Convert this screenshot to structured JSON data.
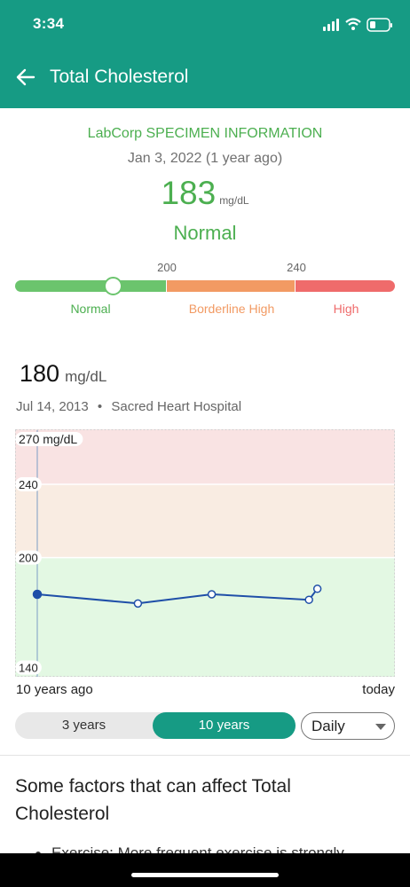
{
  "status_bar": {
    "time": "3:34"
  },
  "header": {
    "title": "Total Cholesterol"
  },
  "latest": {
    "source": "LabCorp SPECIMEN INFORMATION",
    "date": "Jan 3, 2022 (1 year ago)",
    "value": "183",
    "unit": "mg/dL",
    "status": "Normal"
  },
  "range_bar": {
    "ticks": [
      "200",
      "240"
    ],
    "labels": {
      "normal": "Normal",
      "borderline": "Borderline High",
      "high": "High"
    },
    "colors": {
      "normal": "#6bc46d",
      "borderline": "#f29a63",
      "high": "#ef6b6b"
    }
  },
  "selected": {
    "value": "180",
    "unit": "mg/dL",
    "date": "Jul 14, 2013",
    "separator": "•",
    "location": "Sacred Heart Hospital"
  },
  "chart_data": {
    "type": "line",
    "y_labels": [
      "270 mg/dL",
      "240",
      "200",
      "140"
    ],
    "ylim": [
      135,
      270
    ],
    "bands": [
      {
        "from": 240,
        "to": 270,
        "color": "#f9e3e3"
      },
      {
        "from": 200,
        "to": 240,
        "color": "#f9ece2"
      },
      {
        "from": 135,
        "to": 200,
        "color": "#e3f8e3"
      }
    ],
    "series": [
      {
        "points": [
          {
            "x": 0,
            "y": 180
          },
          {
            "x": 0.3,
            "y": 175
          },
          {
            "x": 0.52,
            "y": 180
          },
          {
            "x": 0.81,
            "y": 177
          },
          {
            "x": 0.835,
            "y": 183
          }
        ],
        "color": "#1f4fa8"
      }
    ],
    "x_start_label": "10 years ago",
    "x_end_label": "today"
  },
  "controls": {
    "range_options": [
      "3 years",
      "10 years"
    ],
    "selected_range": "10 years",
    "frequency": "Daily"
  },
  "factors": {
    "heading": "Some factors that can affect Total Cholesterol",
    "first_item_partial": "Exercise: More frequent exercise is strongly"
  }
}
